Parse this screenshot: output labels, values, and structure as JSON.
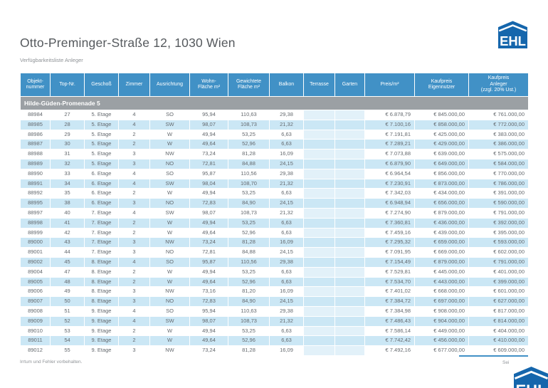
{
  "header": {
    "title": "Otto-Preminger-Straße 12, 1030 Wien",
    "subtitle": "Verfügbarkeitsliste Anleger",
    "logo_text": "EHL"
  },
  "colors": {
    "header_blue": "#4191c6",
    "section_gray": "#9ba0a4",
    "stripe_blue": "#cbe7f5",
    "empty_cell_tint": "#e2f1f9",
    "logo_blue": "#1566ac",
    "body_text": "#64696e"
  },
  "table": {
    "section": "Hilde-Güden-Promenade 5",
    "columns": [
      {
        "id": "objektnummer",
        "label": "Objekt-\nnummer"
      },
      {
        "id": "top-nr",
        "label": "Top-Nr."
      },
      {
        "id": "geschoss",
        "label": "Geschoß"
      },
      {
        "id": "zimmer",
        "label": "Zimmer"
      },
      {
        "id": "ausrichtung",
        "label": "Ausrichtung"
      },
      {
        "id": "wohnflaeche",
        "label": "Wohn-\nFläche m²"
      },
      {
        "id": "gewichtete-flaeche",
        "label": "Gewichtete\nFläche m²"
      },
      {
        "id": "balkon",
        "label": "Balkon"
      },
      {
        "id": "terrasse",
        "label": "Terrasse",
        "tint": true
      },
      {
        "id": "garten",
        "label": "Garten",
        "tint": true
      },
      {
        "id": "preis-m2",
        "label": "Preis/m²",
        "align": "right"
      },
      {
        "id": "kaufpreis-eigennutzer",
        "label": "Kaufpreis\nEigennutzer",
        "align": "right"
      },
      {
        "id": "kaufpreis-anleger",
        "label": "Kaufpreis\nAnleger\n(zzgl. 20% Ust.)",
        "align": "right"
      }
    ],
    "rows": [
      [
        "88984",
        "27",
        "5. Etage",
        "4",
        "SO",
        "95,94",
        "110,63",
        "29,38",
        "",
        "",
        "€ 6.878,79",
        "€ 845.000,00",
        "€ 761.000,00"
      ],
      [
        "88985",
        "28",
        "5. Etage",
        "4",
        "SW",
        "98,07",
        "108,73",
        "21,32",
        "",
        "",
        "€ 7.100,16",
        "€ 858.000,00",
        "€ 772.000,00"
      ],
      [
        "88986",
        "29",
        "5. Etage",
        "2",
        "W",
        "49,94",
        "53,25",
        "6,63",
        "",
        "",
        "€ 7.191,81",
        "€ 425.000,00",
        "€ 383.000,00"
      ],
      [
        "88987",
        "30",
        "5. Etage",
        "2",
        "W",
        "49,64",
        "52,96",
        "6,63",
        "",
        "",
        "€ 7.289,21",
        "€ 429.000,00",
        "€ 386.000,00"
      ],
      [
        "88988",
        "31",
        "5. Etage",
        "3",
        "NW",
        "73,24",
        "81,28",
        "16,09",
        "",
        "",
        "€ 7.073,88",
        "€ 639.000,00",
        "€ 575.000,00"
      ],
      [
        "88989",
        "32",
        "5. Etage",
        "3",
        "NO",
        "72,81",
        "84,88",
        "24,15",
        "",
        "",
        "€ 6.879,90",
        "€ 649.000,00",
        "€ 584.000,00"
      ],
      [
        "88990",
        "33",
        "6. Etage",
        "4",
        "SO",
        "95,87",
        "110,56",
        "29,38",
        "",
        "",
        "€ 6.964,54",
        "€ 856.000,00",
        "€ 770.000,00"
      ],
      [
        "88991",
        "34",
        "6. Etage",
        "4",
        "SW",
        "98,04",
        "108,70",
        "21,32",
        "",
        "",
        "€ 7.230,91",
        "€ 873.000,00",
        "€ 786.000,00"
      ],
      [
        "88992",
        "35",
        "6. Etage",
        "2",
        "W",
        "49,94",
        "53,25",
        "6,63",
        "",
        "",
        "€ 7.342,03",
        "€ 434.000,00",
        "€ 391.000,00"
      ],
      [
        "88995",
        "38",
        "6. Etage",
        "3",
        "NO",
        "72,83",
        "84,90",
        "24,15",
        "",
        "",
        "€ 6.948,94",
        "€ 656.000,00",
        "€ 590.000,00"
      ],
      [
        "88997",
        "40",
        "7. Etage",
        "4",
        "SW",
        "98,07",
        "108,73",
        "21,32",
        "",
        "",
        "€ 7.274,90",
        "€ 879.000,00",
        "€ 791.000,00"
      ],
      [
        "88998",
        "41",
        "7. Etage",
        "2",
        "W",
        "49,94",
        "53,25",
        "6,63",
        "",
        "",
        "€ 7.360,81",
        "€ 436.000,00",
        "€ 392.000,00"
      ],
      [
        "88999",
        "42",
        "7. Etage",
        "2",
        "W",
        "49,64",
        "52,96",
        "6,63",
        "",
        "",
        "€ 7.459,16",
        "€ 439.000,00",
        "€ 395.000,00"
      ],
      [
        "89000",
        "43",
        "7. Etage",
        "3",
        "NW",
        "73,24",
        "81,28",
        "16,09",
        "",
        "",
        "€ 7.295,32",
        "€ 659.000,00",
        "€ 593.000,00"
      ],
      [
        "89001",
        "44",
        "7. Etage",
        "3",
        "NO",
        "72,81",
        "84,88",
        "24,15",
        "",
        "",
        "€ 7.091,95",
        "€ 669.000,00",
        "€ 602.000,00"
      ],
      [
        "89002",
        "45",
        "8. Etage",
        "4",
        "SO",
        "95,87",
        "110,56",
        "29,38",
        "",
        "",
        "€ 7.154,49",
        "€ 879.000,00",
        "€ 791.000,00"
      ],
      [
        "89004",
        "47",
        "8. Etage",
        "2",
        "W",
        "49,94",
        "53,25",
        "6,63",
        "",
        "",
        "€ 7.529,81",
        "€ 445.000,00",
        "€ 401.000,00"
      ],
      [
        "89005",
        "48",
        "8. Etage",
        "2",
        "W",
        "49,64",
        "52,96",
        "6,63",
        "",
        "",
        "€ 7.534,70",
        "€ 443.000,00",
        "€ 399.000,00"
      ],
      [
        "89006",
        "49",
        "8. Etage",
        "3",
        "NW",
        "73,16",
        "81,20",
        "16,09",
        "",
        "",
        "€ 7.401,02",
        "€ 668.000,00",
        "€ 601.000,00"
      ],
      [
        "89007",
        "50",
        "8. Etage",
        "3",
        "NO",
        "72,83",
        "84,90",
        "24,15",
        "",
        "",
        "€ 7.384,72",
        "€ 697.000,00",
        "€ 627.000,00"
      ],
      [
        "89008",
        "51",
        "9. Etage",
        "4",
        "SO",
        "95,94",
        "110,63",
        "29,38",
        "",
        "",
        "€ 7.384,98",
        "€ 908.000,00",
        "€ 817.000,00"
      ],
      [
        "89009",
        "52",
        "9. Etage",
        "4",
        "SW",
        "98,07",
        "108,73",
        "21,32",
        "",
        "",
        "€ 7.486,43",
        "€ 904.000,00",
        "€ 814.000,00"
      ],
      [
        "89010",
        "53",
        "9. Etage",
        "2",
        "W",
        "49,94",
        "53,25",
        "6,63",
        "",
        "",
        "€ 7.586,14",
        "€ 449.000,00",
        "€ 404.000,00"
      ],
      [
        "89011",
        "54",
        "9. Etage",
        "2",
        "W",
        "49,64",
        "52,96",
        "6,63",
        "",
        "",
        "€ 7.742,42",
        "€ 456.000,00",
        "€ 410.000,00"
      ],
      [
        "89012",
        "55",
        "9. Etage",
        "3",
        "NW",
        "73,24",
        "81,28",
        "16,09",
        "",
        "",
        "€ 7.492,16",
        "€ 677.000,00",
        "€ 609.000,00"
      ]
    ]
  },
  "footer": {
    "disclaimer": "Irrtum und Fehler vorbehalten.",
    "page_text": "Sei"
  }
}
